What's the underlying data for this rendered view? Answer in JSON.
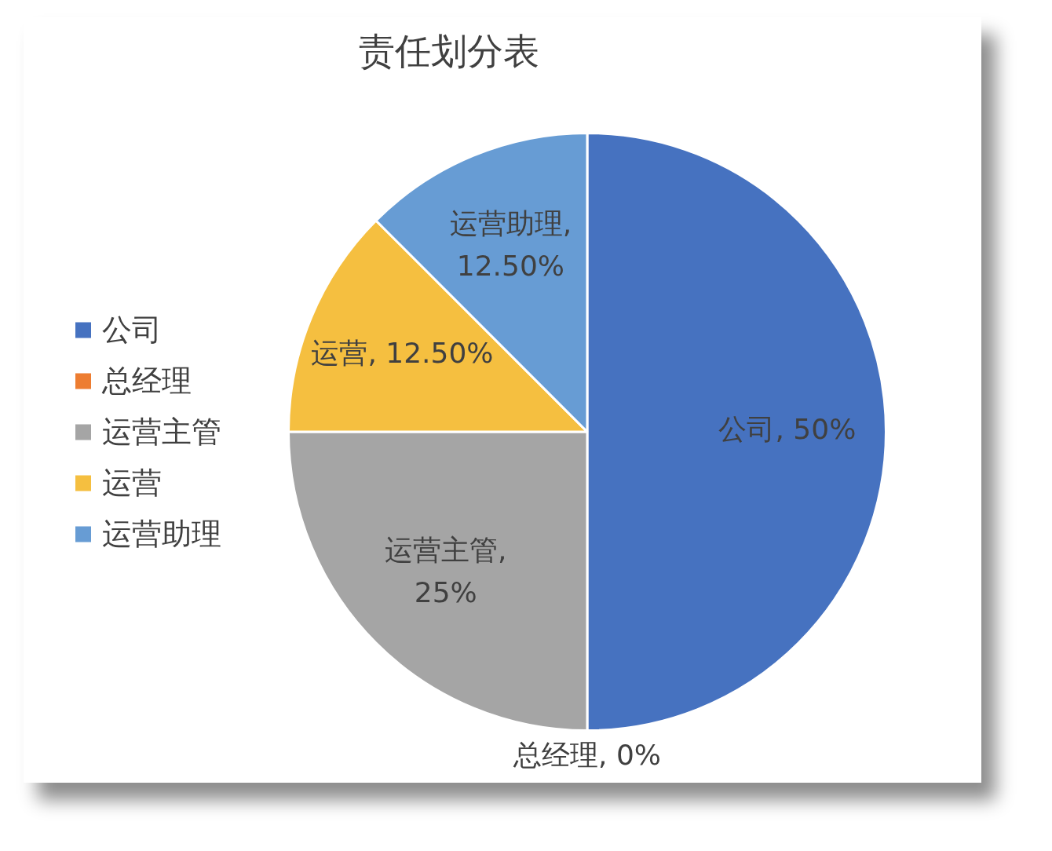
{
  "chart_data": {
    "type": "pie",
    "title": "责任划分表",
    "categories": [
      "公司",
      "总经理",
      "运营主管",
      "运营",
      "运营助理"
    ],
    "values": [
      50,
      0,
      25,
      12.5,
      12.5
    ],
    "colors": [
      "#4672c0",
      "#ed7d31",
      "#a5a5a5",
      "#f5bf40",
      "#679cd4"
    ],
    "value_labels": [
      "公司, 50%",
      "总经理, 0%",
      "运营主管, 25%",
      "运营, 12.50%",
      "运营助理, 12.50%"
    ],
    "legend": "left"
  }
}
